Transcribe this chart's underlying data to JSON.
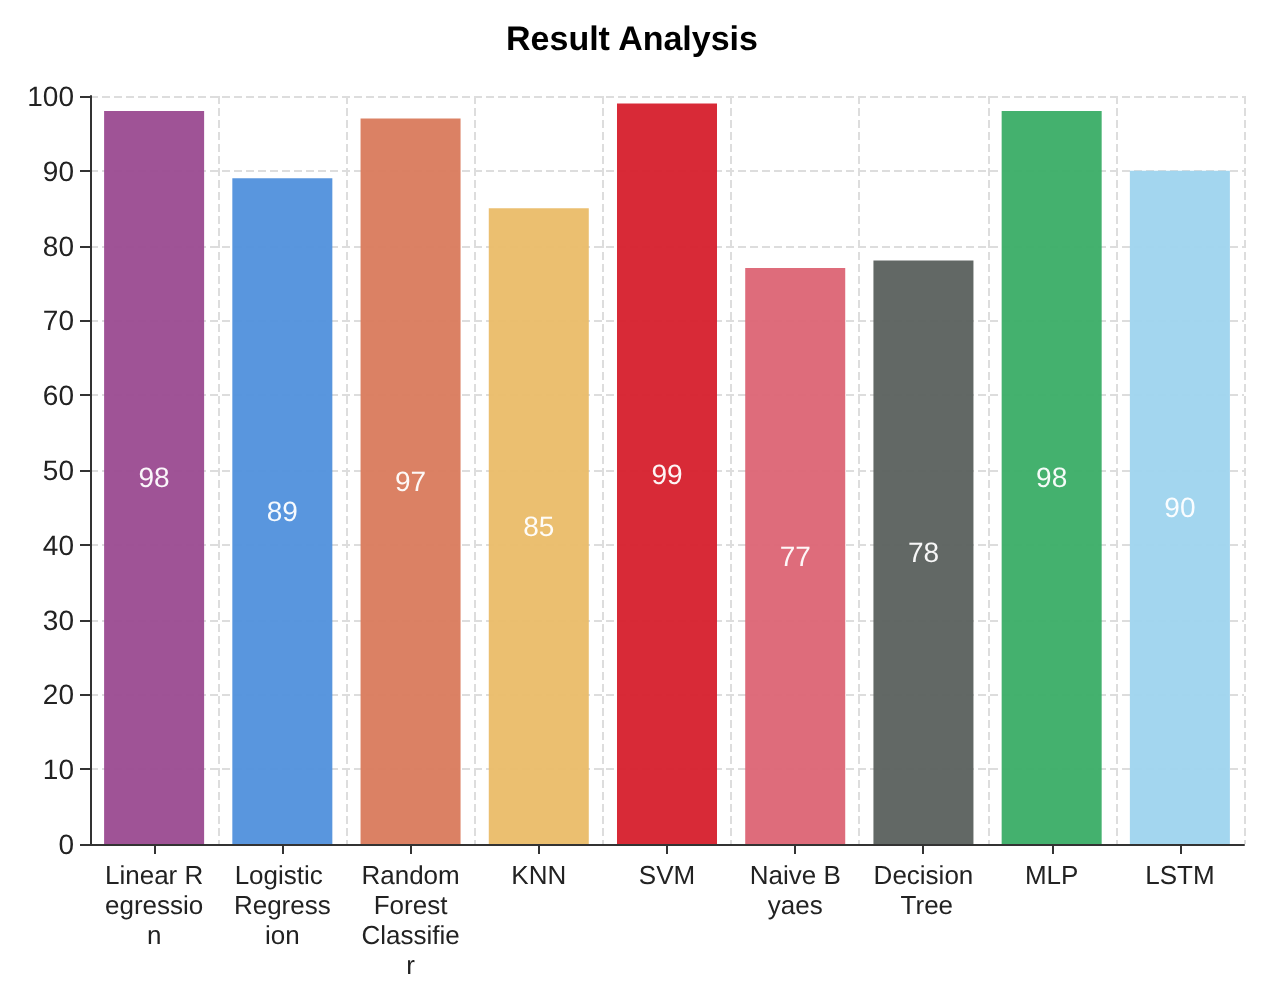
{
  "chart_data": {
    "type": "bar",
    "title": "Result Analysis",
    "categories": [
      "Linear Regression",
      "Logistic Regression",
      "Random Forest Classifier",
      "KNN",
      "SVM",
      "Naive Byaes",
      "Decision Tree",
      "MLP",
      "LSTM"
    ],
    "values": [
      98,
      89,
      97,
      85,
      99,
      77,
      78,
      98,
      90
    ],
    "colors": [
      "#9a4a90",
      "#5090dc",
      "#d97a5c",
      "#eabc68",
      "#d61f2c",
      "#dc6474",
      "#5a605d",
      "#3aad66",
      "#9ed4ee"
    ],
    "ylim": [
      0,
      100
    ],
    "yticks": [
      0,
      10,
      20,
      30,
      40,
      50,
      60,
      70,
      80,
      90,
      100
    ],
    "grid": true,
    "data_labels": true
  }
}
